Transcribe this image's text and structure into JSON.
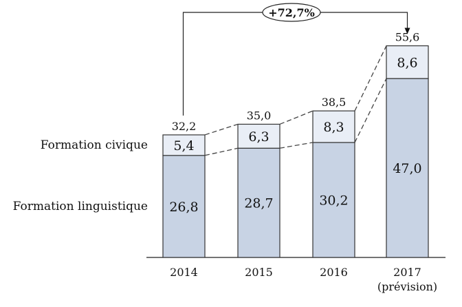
{
  "chart_data": {
    "type": "bar",
    "stacked": true,
    "categories": [
      "2014",
      "2015",
      "2016",
      "2017"
    ],
    "category_sublabels": [
      "",
      "",
      "",
      "(prévision)"
    ],
    "series": [
      {
        "name": "Formation linguistique",
        "values": [
          26.8,
          28.7,
          30.2,
          47.0
        ],
        "labels": [
          "26,8",
          "28,7",
          "30,2",
          "47,0"
        ],
        "color": "#c8d3e4"
      },
      {
        "name": "Formation civique",
        "values": [
          5.4,
          6.3,
          8.3,
          8.6
        ],
        "labels": [
          "5,4",
          "6,3",
          "8,3",
          "8,6"
        ],
        "color": "#e9eef6"
      }
    ],
    "totals": [
      32.2,
      35.0,
      38.5,
      55.6
    ],
    "total_labels": [
      "32,2",
      "35,0",
      "38,5",
      "55,6"
    ],
    "annotation": "+72,7%",
    "ylim": [
      0,
      60
    ],
    "grid": false,
    "legend": "left, inline labels"
  }
}
